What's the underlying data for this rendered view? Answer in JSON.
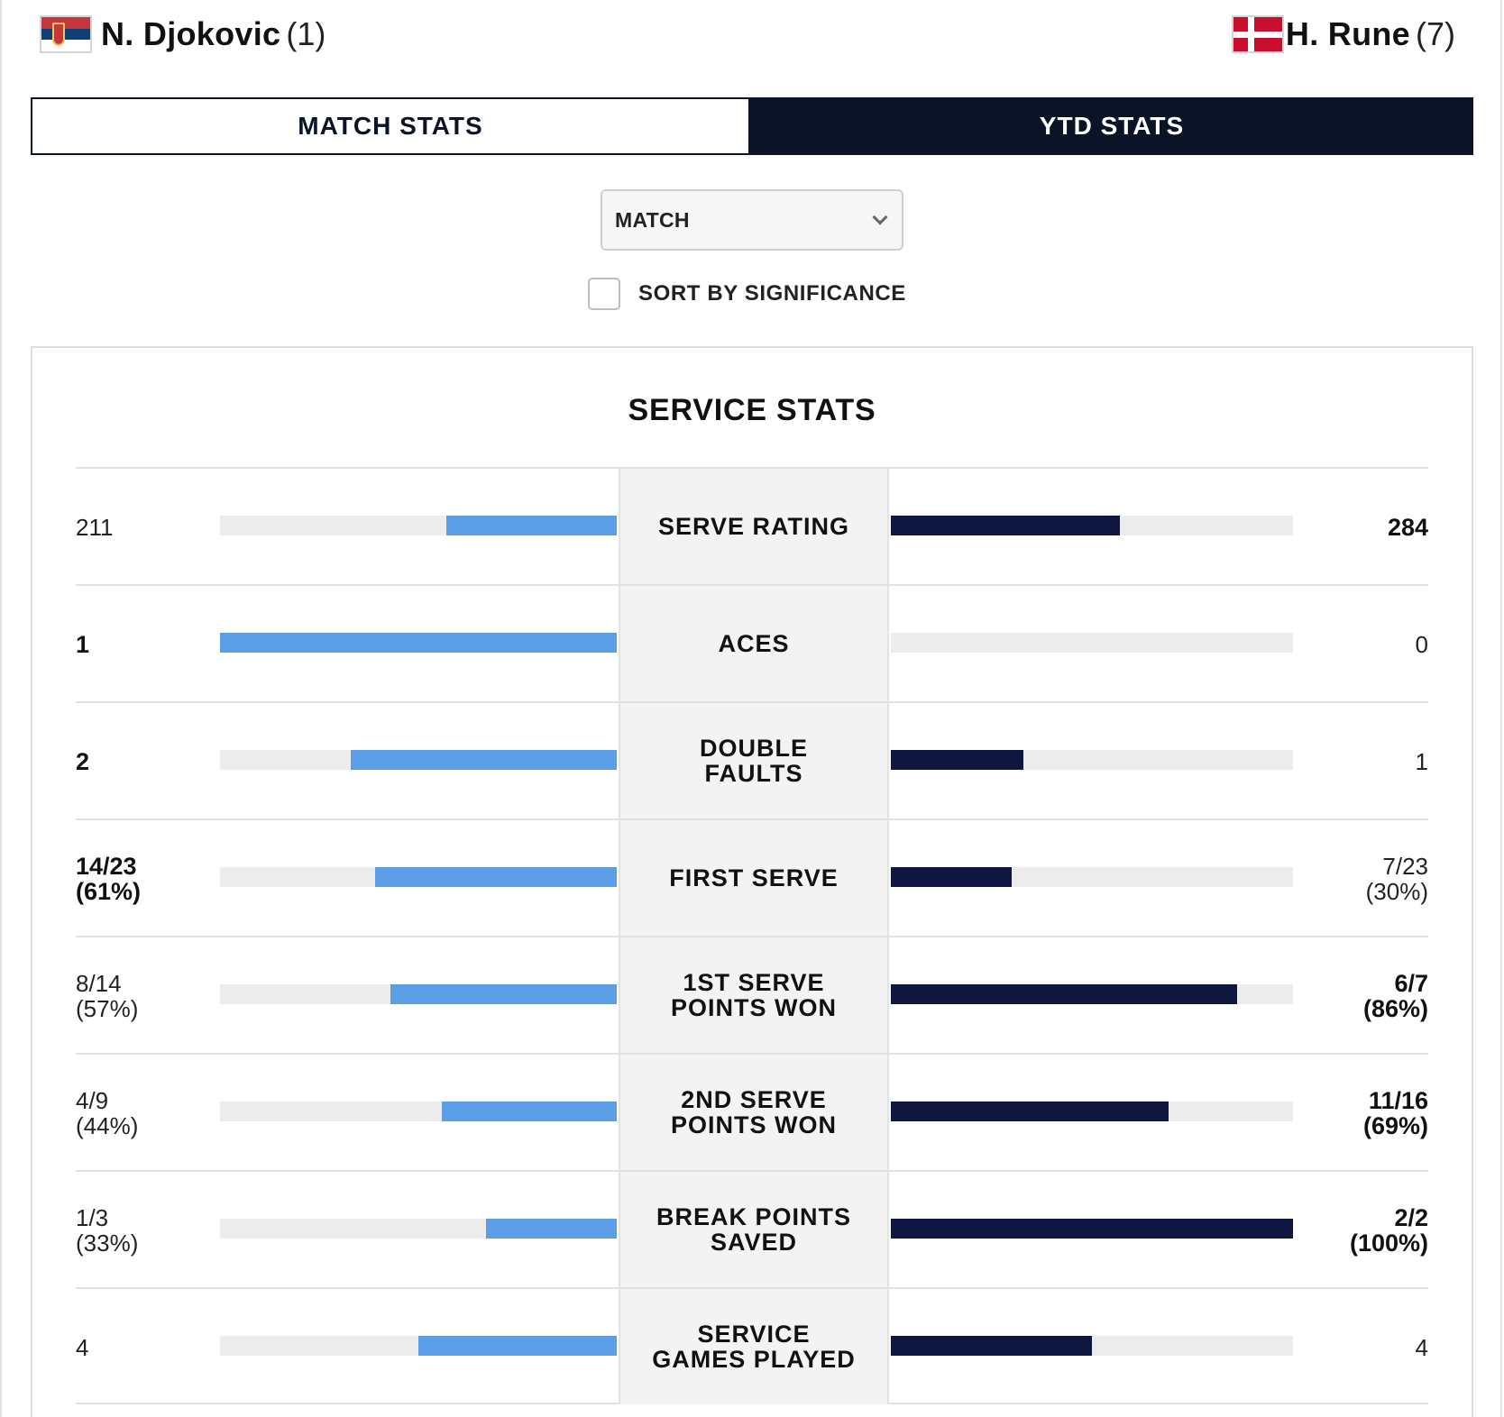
{
  "players": {
    "left": {
      "name": "N. Djokovic",
      "seed": "(1)",
      "flag": "serbia-flag-icon"
    },
    "right": {
      "name": "H. Rune",
      "seed": "(7)",
      "flag": "denmark-flag-icon"
    }
  },
  "tabs": [
    {
      "label": "MATCH STATS",
      "active": true
    },
    {
      "label": "YTD STATS",
      "active": false
    }
  ],
  "filter": {
    "selected": "MATCH",
    "icon": "chevron-down-icon"
  },
  "sort": {
    "label": "SORT BY SIGNIFICANCE",
    "checked": false
  },
  "colors": {
    "left_bar": "#5c9ee6",
    "right_bar": "#0f1740",
    "track": "#ececec",
    "dark": "#0b1426"
  },
  "section": {
    "title": "SERVICE STATS",
    "rows": [
      {
        "label": "SERVE RATING",
        "left": {
          "line1": "211",
          "line2": "",
          "bold": false,
          "bar_fraction": 0.43
        },
        "right": {
          "line1": "284",
          "line2": "",
          "bold": true,
          "bar_fraction": 0.57
        }
      },
      {
        "label": "ACES",
        "left": {
          "line1": "1",
          "line2": "",
          "bold": true,
          "bar_fraction": 1.0
        },
        "right": {
          "line1": "0",
          "line2": "",
          "bold": false,
          "bar_fraction": 0.0
        }
      },
      {
        "label": "DOUBLE FAULTS",
        "left": {
          "line1": "2",
          "line2": "",
          "bold": true,
          "bar_fraction": 0.67
        },
        "right": {
          "line1": "1",
          "line2": "",
          "bold": false,
          "bar_fraction": 0.33
        }
      },
      {
        "label": "FIRST SERVE",
        "left": {
          "line1": "14/23",
          "line2": "(61%)",
          "bold": true,
          "bar_fraction": 0.61
        },
        "right": {
          "line1": "7/23",
          "line2": "(30%)",
          "bold": false,
          "bar_fraction": 0.3
        }
      },
      {
        "label": "1ST SERVE POINTS WON",
        "left": {
          "line1": "8/14",
          "line2": "(57%)",
          "bold": false,
          "bar_fraction": 0.57
        },
        "right": {
          "line1": "6/7",
          "line2": "(86%)",
          "bold": true,
          "bar_fraction": 0.86
        }
      },
      {
        "label": "2ND SERVE POINTS WON",
        "left": {
          "line1": "4/9",
          "line2": "(44%)",
          "bold": false,
          "bar_fraction": 0.44
        },
        "right": {
          "line1": "11/16",
          "line2": "(69%)",
          "bold": true,
          "bar_fraction": 0.69
        }
      },
      {
        "label": "BREAK POINTS SAVED",
        "left": {
          "line1": "1/3",
          "line2": "(33%)",
          "bold": false,
          "bar_fraction": 0.33
        },
        "right": {
          "line1": "2/2",
          "line2": "(100%)",
          "bold": true,
          "bar_fraction": 1.0
        }
      },
      {
        "label": "SERVICE GAMES PLAYED",
        "left": {
          "line1": "4",
          "line2": "",
          "bold": false,
          "bar_fraction": 0.5
        },
        "right": {
          "line1": "4",
          "line2": "",
          "bold": false,
          "bar_fraction": 0.5
        }
      }
    ]
  }
}
